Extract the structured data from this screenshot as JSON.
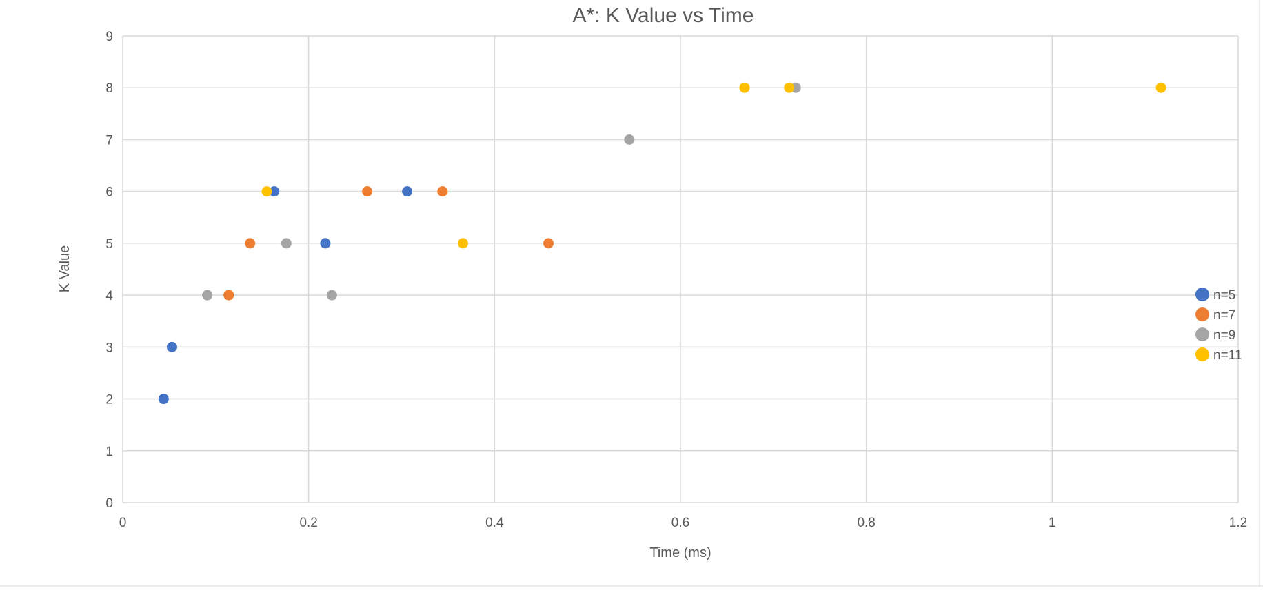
{
  "chart_data": {
    "type": "scatter",
    "title": "A*: K Value vs Time",
    "xlabel": "Time (ms)",
    "ylabel": "K Value",
    "xlim": [
      0,
      1.2
    ],
    "ylim": [
      0,
      9
    ],
    "x_ticks": [
      0,
      0.2,
      0.4,
      0.6,
      0.8,
      1,
      1.2
    ],
    "x_tick_labels": [
      "0",
      "0.2",
      "0.4",
      "0.6",
      "0.8",
      "1",
      "1.2"
    ],
    "y_ticks": [
      0,
      1,
      2,
      3,
      4,
      5,
      6,
      7,
      8,
      9
    ],
    "y_tick_labels": [
      "0",
      "1",
      "2",
      "3",
      "4",
      "5",
      "6",
      "7",
      "8",
      "9"
    ],
    "grid": true,
    "legend_position": "right",
    "series": [
      {
        "name": "n=5",
        "color": "#4472C4",
        "points": [
          {
            "x": 0.044,
            "y": 2
          },
          {
            "x": 0.053,
            "y": 3
          },
          {
            "x": 0.163,
            "y": 6
          },
          {
            "x": 0.218,
            "y": 5
          },
          {
            "x": 0.306,
            "y": 6
          }
        ]
      },
      {
        "name": "n=7",
        "color": "#ED7D31",
        "points": [
          {
            "x": 0.114,
            "y": 4
          },
          {
            "x": 0.137,
            "y": 5
          },
          {
            "x": 0.263,
            "y": 6
          },
          {
            "x": 0.344,
            "y": 6
          },
          {
            "x": 0.458,
            "y": 5
          }
        ]
      },
      {
        "name": "n=9",
        "color": "#A5A5A5",
        "points": [
          {
            "x": 0.091,
            "y": 4
          },
          {
            "x": 0.176,
            "y": 5
          },
          {
            "x": 0.225,
            "y": 4
          },
          {
            "x": 0.545,
            "y": 7
          },
          {
            "x": 0.724,
            "y": 8
          }
        ]
      },
      {
        "name": "n=11",
        "color": "#FFC000",
        "points": [
          {
            "x": 0.155,
            "y": 6
          },
          {
            "x": 0.366,
            "y": 5
          },
          {
            "x": 0.669,
            "y": 8
          },
          {
            "x": 0.717,
            "y": 8
          },
          {
            "x": 1.117,
            "y": 8
          }
        ]
      }
    ]
  }
}
